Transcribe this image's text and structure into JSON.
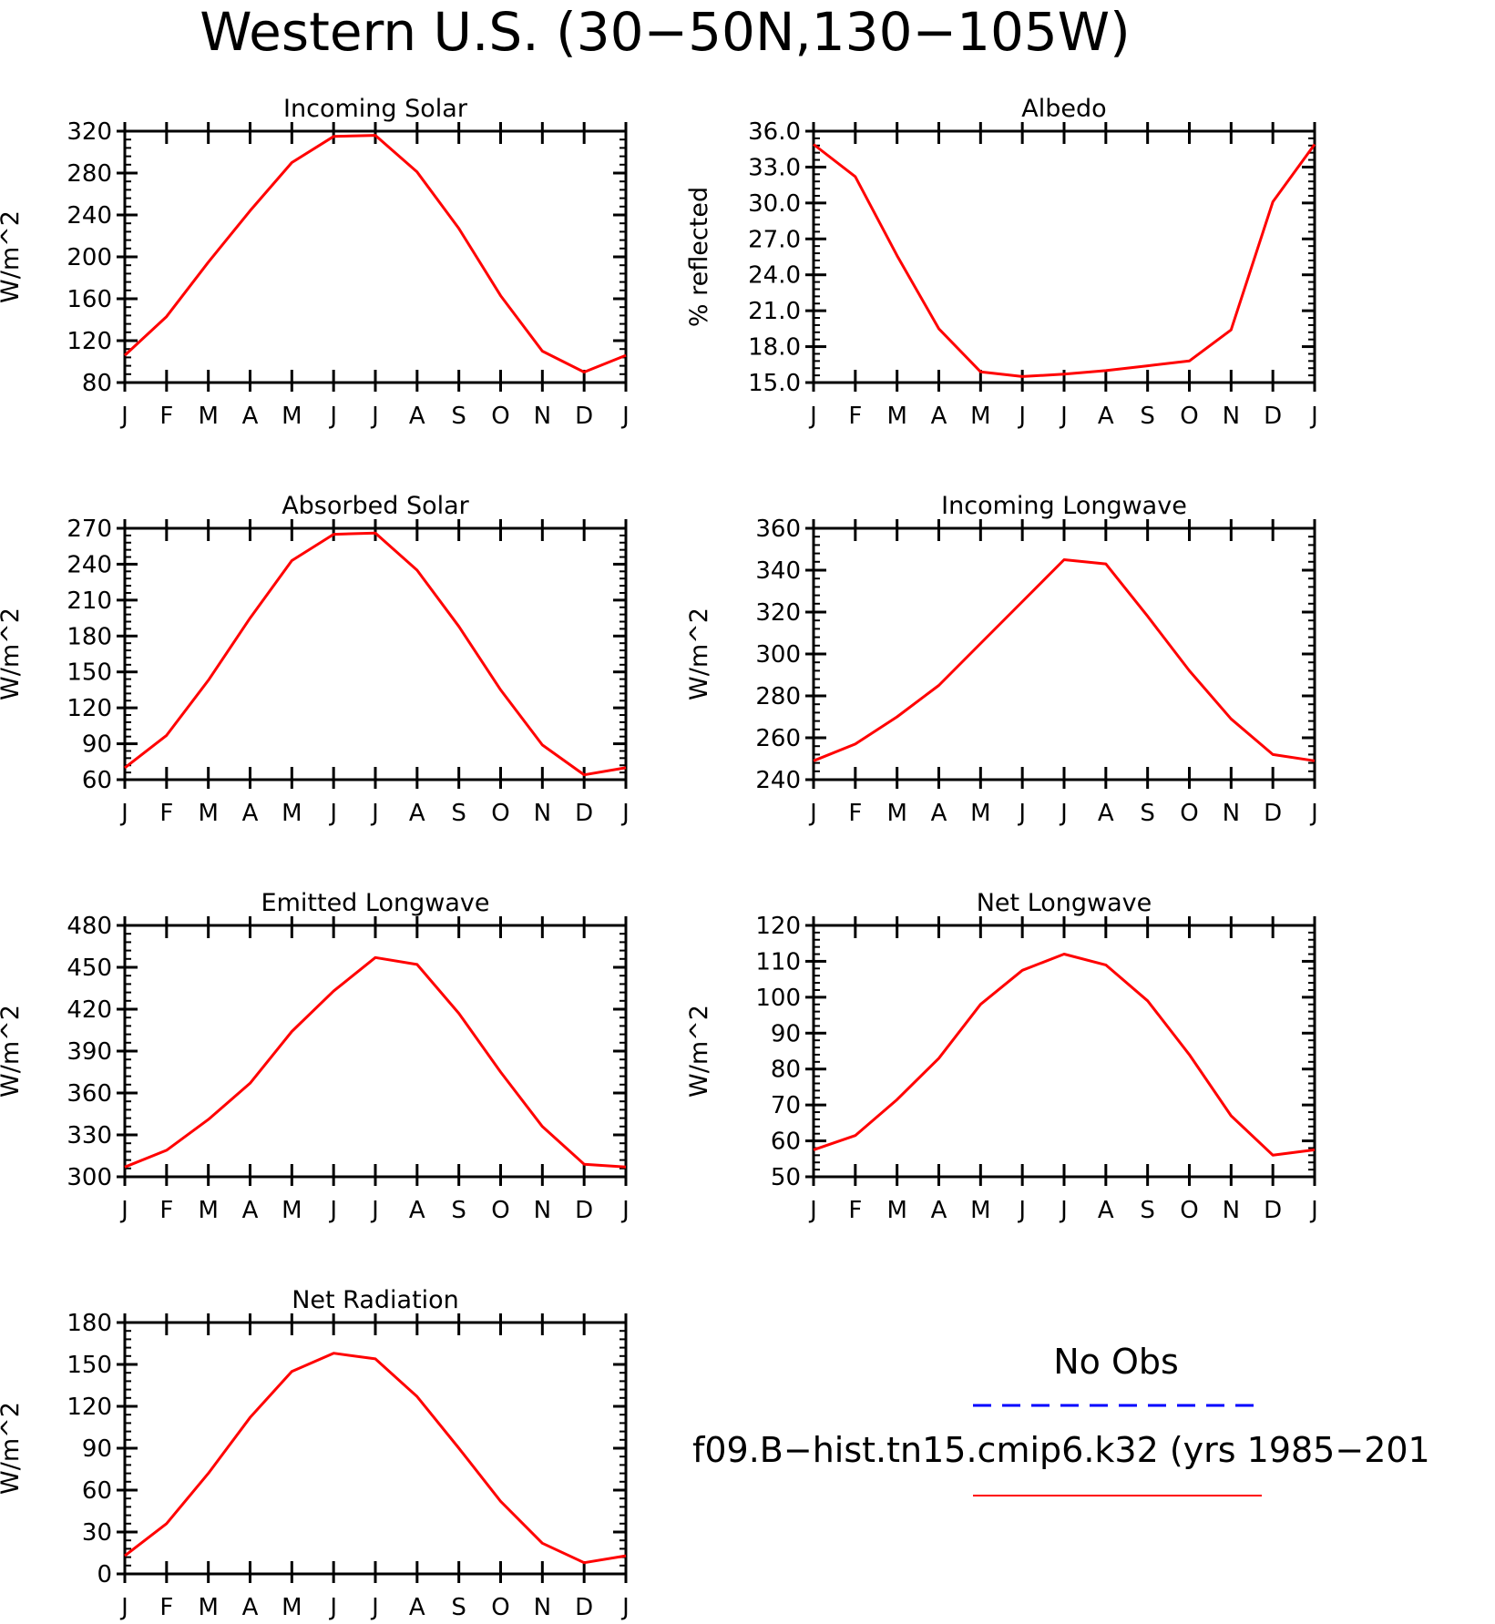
{
  "title": "Western U.S. (30−50N,130−105W)",
  "months": [
    "J",
    "F",
    "M",
    "A",
    "M",
    "J",
    "J",
    "A",
    "S",
    "O",
    "N",
    "D",
    "J"
  ],
  "colors": {
    "model": "#ff0000",
    "obs": "#0000ff",
    "axis": "#000000"
  },
  "legend": {
    "obs_label": "No Obs",
    "model_label": "f09.B−hist.tn15.cmip6.k32 (yrs 1985−201"
  },
  "chart_data": [
    {
      "id": "incoming-solar",
      "type": "line",
      "title": "Incoming Solar",
      "ylabel": "W/m^2",
      "ylim": [
        80,
        320
      ],
      "yticks": [
        "80",
        "120",
        "160",
        "200",
        "240",
        "280",
        "320"
      ],
      "categories": [
        "J",
        "F",
        "M",
        "A",
        "M",
        "J",
        "J",
        "A",
        "S",
        "O",
        "N",
        "D",
        "J"
      ],
      "values": [
        106,
        143,
        195,
        244,
        290,
        315,
        316,
        281,
        227,
        163,
        110,
        90,
        106
      ]
    },
    {
      "id": "albedo",
      "type": "line",
      "title": "Albedo",
      "ylabel": "% reflected",
      "ylim": [
        15.0,
        36.0
      ],
      "yticks": [
        "15.0",
        "18.0",
        "21.0",
        "24.0",
        "27.0",
        "30.0",
        "33.0",
        "36.0"
      ],
      "categories": [
        "J",
        "F",
        "M",
        "A",
        "M",
        "J",
        "J",
        "A",
        "S",
        "O",
        "N",
        "D",
        "J"
      ],
      "values": [
        34.9,
        32.2,
        25.6,
        19.5,
        15.9,
        15.5,
        15.7,
        16.0,
        16.4,
        16.8,
        19.4,
        30.1,
        34.9
      ]
    },
    {
      "id": "absorbed-solar",
      "type": "line",
      "title": "Absorbed Solar",
      "ylabel": "W/m^2",
      "ylim": [
        60,
        270
      ],
      "yticks": [
        "60",
        "90",
        "120",
        "150",
        "180",
        "210",
        "240",
        "270"
      ],
      "categories": [
        "J",
        "F",
        "M",
        "A",
        "M",
        "J",
        "J",
        "A",
        "S",
        "O",
        "N",
        "D",
        "J"
      ],
      "values": [
        70,
        97,
        143,
        195,
        243,
        265,
        266,
        235,
        188,
        135,
        89,
        64,
        70
      ]
    },
    {
      "id": "incoming-longwave",
      "type": "line",
      "title": "Incoming Longwave",
      "ylabel": "W/m^2",
      "ylim": [
        240,
        360
      ],
      "yticks": [
        "240",
        "260",
        "280",
        "300",
        "320",
        "340",
        "360"
      ],
      "categories": [
        "J",
        "F",
        "M",
        "A",
        "M",
        "J",
        "J",
        "A",
        "S",
        "O",
        "N",
        "D",
        "J"
      ],
      "values": [
        249,
        257,
        270,
        285,
        305,
        325,
        345,
        343,
        318,
        292,
        269,
        252,
        249
      ]
    },
    {
      "id": "emitted-longwave",
      "type": "line",
      "title": "Emitted Longwave",
      "ylabel": "W/m^2",
      "ylim": [
        300,
        480
      ],
      "yticks": [
        "300",
        "330",
        "360",
        "390",
        "420",
        "450",
        "480"
      ],
      "categories": [
        "J",
        "F",
        "M",
        "A",
        "M",
        "J",
        "J",
        "A",
        "S",
        "O",
        "N",
        "D",
        "J"
      ],
      "values": [
        307,
        319,
        341,
        367,
        404,
        433,
        457,
        452,
        417,
        375,
        336,
        309,
        307
      ]
    },
    {
      "id": "net-longwave",
      "type": "line",
      "title": "Net Longwave",
      "ylabel": "W/m^2",
      "ylim": [
        50,
        120
      ],
      "yticks": [
        "50",
        "60",
        "70",
        "80",
        "90",
        "100",
        "110",
        "120"
      ],
      "categories": [
        "J",
        "F",
        "M",
        "A",
        "M",
        "J",
        "J",
        "A",
        "S",
        "O",
        "N",
        "D",
        "J"
      ],
      "values": [
        57.5,
        61.5,
        71.5,
        83,
        98,
        107.5,
        112,
        109,
        99,
        84,
        67,
        56,
        57.5
      ]
    },
    {
      "id": "net-radiation",
      "type": "line",
      "title": "Net Radiation",
      "ylabel": "W/m^2",
      "ylim": [
        0,
        180
      ],
      "yticks": [
        "0",
        "30",
        "60",
        "90",
        "120",
        "150",
        "180"
      ],
      "categories": [
        "J",
        "F",
        "M",
        "A",
        "M",
        "J",
        "J",
        "A",
        "S",
        "O",
        "N",
        "D",
        "J"
      ],
      "values": [
        13,
        36,
        72,
        112,
        145,
        158,
        154,
        127,
        90,
        52,
        22,
        8,
        13
      ]
    }
  ]
}
